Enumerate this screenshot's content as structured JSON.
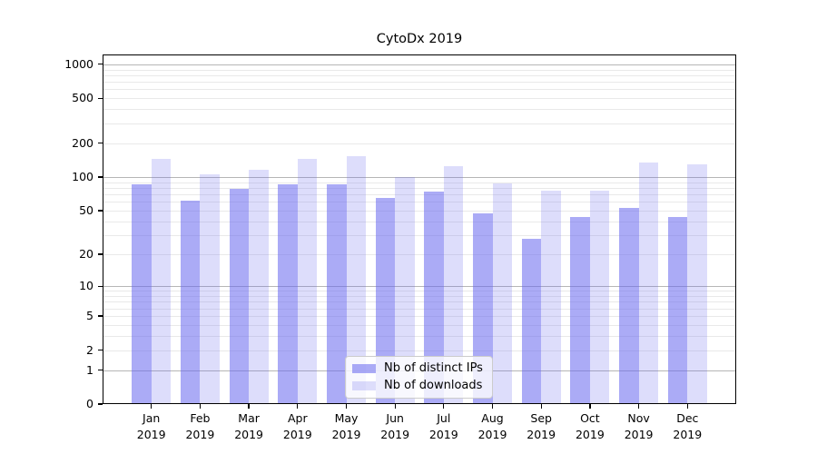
{
  "title": "CytoDx 2019",
  "chart_data": {
    "type": "bar",
    "title": "CytoDx 2019",
    "categories": [
      "Jan 2019",
      "Feb 2019",
      "Mar 2019",
      "Apr 2019",
      "May 2019",
      "Jun 2019",
      "Jul 2019",
      "Aug 2019",
      "Sep 2019",
      "Oct 2019",
      "Nov 2019",
      "Dec 2019"
    ],
    "series": [
      {
        "name": "Nb of distinct IPs",
        "base_hex": "#6666ee",
        "color": "rgba(102,102,238,0.55)",
        "values": [
          87,
          61,
          79,
          86,
          86,
          65,
          74,
          47,
          28,
          44,
          53,
          44
        ]
      },
      {
        "name": "Nb of downloads",
        "base_hex": "#6666ee",
        "color": "rgba(102,102,238,0.22)",
        "values": [
          144,
          106,
          117,
          145,
          155,
          101,
          125,
          88,
          76,
          75,
          135,
          130
        ]
      }
    ],
    "xlabel": "",
    "ylabel": "",
    "yscale": "log1p",
    "yticks": [
      0,
      1,
      2,
      5,
      10,
      20,
      50,
      100,
      200,
      500,
      1000
    ],
    "ylim": [
      0,
      1220
    ],
    "grid": "both",
    "grid_major_color": "#b6b6b6",
    "grid_minor_color": "#e9e9e9",
    "legend_position": "lower-center"
  }
}
